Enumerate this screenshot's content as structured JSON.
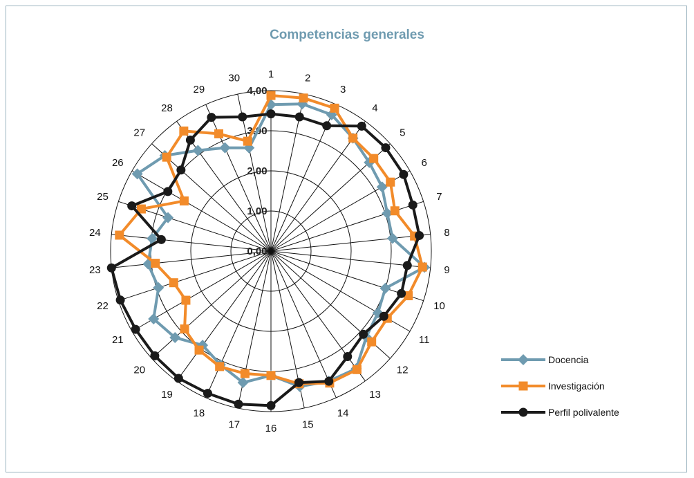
{
  "chart_data": {
    "type": "radar",
    "title": "Competencias generales",
    "axes": [
      "1",
      "2",
      "3",
      "4",
      "5",
      "6",
      "7",
      "8",
      "9",
      "10",
      "11",
      "12",
      "13",
      "14",
      "15",
      "16",
      "17",
      "18",
      "19",
      "20",
      "21",
      "22",
      "23",
      "24",
      "25",
      "26",
      "27",
      "28",
      "29",
      "30"
    ],
    "rings": [
      0,
      1,
      2,
      3,
      4
    ],
    "ring_labels": [
      "0,00",
      "1,00",
      "2,00",
      "3,00",
      "4,00"
    ],
    "rmax": 4,
    "series": [
      {
        "name": "Docencia",
        "color": "#6f9bb0",
        "marker": "diamond",
        "values": [
          3.65,
          3.75,
          3.72,
          3.48,
          3.3,
          3.2,
          3.05,
          3.05,
          3.85,
          3.0,
          3.08,
          3.2,
          3.62,
          3.55,
          3.45,
          3.1,
          3.35,
          3.1,
          2.9,
          3.22,
          3.38,
          2.95,
          3.08,
          2.98,
          2.7,
          3.85,
          3.56,
          3.1,
          2.82,
          2.63
        ]
      },
      {
        "name": "Investigación",
        "color": "#f28b2a",
        "marker": "square",
        "values": [
          3.88,
          3.9,
          3.9,
          3.48,
          3.45,
          3.44,
          3.25,
          3.6,
          3.8,
          3.6,
          3.35,
          3.38,
          3.65,
          3.6,
          3.38,
          3.1,
          3.12,
          3.15,
          3.05,
          2.9,
          2.45,
          2.55,
          2.9,
          3.8,
          3.4,
          2.5,
          3.5,
          3.7,
          3.2,
          2.8
        ]
      },
      {
        "name": "Perfil polivalente",
        "color": "#1a1a1a",
        "marker": "circle",
        "values": [
          3.42,
          3.42,
          3.42,
          3.85,
          3.85,
          3.82,
          3.72,
          3.72,
          3.42,
          3.42,
          3.25,
          3.1,
          3.25,
          3.55,
          3.35,
          3.85,
          3.9,
          3.88,
          3.92,
          3.9,
          3.9,
          3.95,
          4.0,
          2.75,
          3.65,
          2.97,
          3.02,
          3.42,
          3.65,
          3.42
        ]
      }
    ]
  }
}
